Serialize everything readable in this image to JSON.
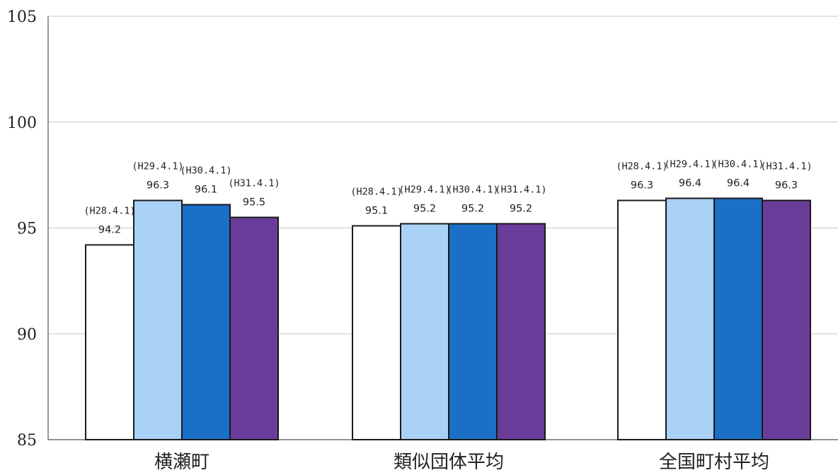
{
  "chart_data": {
    "type": "bar",
    "title": "",
    "xlabel": "",
    "ylabel": "",
    "ylim": [
      85,
      105
    ],
    "yticks": [
      85,
      90,
      95,
      100,
      105
    ],
    "grid": true,
    "legend": "none",
    "categories": [
      "横瀬町",
      "類似団体平均",
      "全国町村平均"
    ],
    "series": [
      {
        "date_label": "(H28.4.1)",
        "color": "#ffffff",
        "values": [
          94.2,
          95.1,
          96.3
        ]
      },
      {
        "date_label": "(H29.4.1)",
        "color": "#a9d1f5",
        "values": [
          96.3,
          95.2,
          96.4
        ]
      },
      {
        "date_label": "(H30.4.1)",
        "color": "#1a6fc6",
        "values": [
          96.1,
          95.2,
          96.4
        ]
      },
      {
        "date_label": "(H31.4.1)",
        "color": "#6a3d9a",
        "values": [
          95.5,
          95.2,
          96.3
        ]
      }
    ]
  }
}
